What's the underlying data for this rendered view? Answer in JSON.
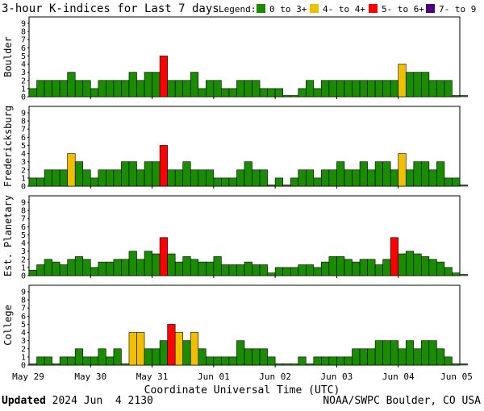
{
  "chart_data": {
    "type": "bar",
    "title": "3-hour K-indices for Last 7 days",
    "legend": {
      "label": "Legend:",
      "placement": "top-right",
      "entries": [
        {
          "label": "0 to 3+",
          "color": "#1a8c00"
        },
        {
          "label": "4- to 4+",
          "color": "#f0c000"
        },
        {
          "label": "5- to 6+",
          "color": "#ff0000"
        },
        {
          "label": "7- to 9",
          "color": "#4b0082"
        }
      ]
    },
    "ylim": [
      0,
      9
    ],
    "yticks": [
      "0",
      "1",
      "2",
      "3",
      "4",
      "5",
      "6",
      "7",
      "8",
      "9"
    ],
    "x_tick_labels": [
      "May 29",
      "May 30",
      "May 31",
      "Jun 01",
      "Jun 02",
      "Jun 03",
      "Jun 04",
      "Jun 05"
    ],
    "xlabel": "Coordinate Universal Time (UTC)",
    "bars_per_day": 8,
    "panels": [
      {
        "name": "Boulder",
        "values": [
          1,
          2,
          2,
          2,
          2,
          3,
          2,
          2,
          1,
          2,
          2,
          2,
          2,
          3,
          2,
          3,
          3,
          5,
          2,
          2,
          2,
          3,
          1,
          2,
          2,
          1,
          1,
          2,
          2,
          2,
          1,
          1,
          1,
          0,
          0,
          1,
          2,
          1,
          2,
          2,
          2,
          2,
          2,
          2,
          2,
          2,
          2,
          2,
          4,
          3,
          3,
          3,
          2,
          2,
          2,
          0,
          0
        ]
      },
      {
        "name": "Fredericksburg",
        "values": [
          1,
          1,
          2,
          2,
          2,
          4,
          3,
          2,
          1,
          2,
          2,
          2,
          3,
          3,
          2,
          3,
          3,
          5,
          2,
          2,
          3,
          2,
          2,
          2,
          1,
          1,
          1,
          2,
          3,
          2,
          2,
          0,
          1,
          0,
          1,
          2,
          2,
          1,
          2,
          2,
          3,
          2,
          2,
          3,
          2,
          3,
          3,
          2,
          4,
          2,
          3,
          3,
          2,
          3,
          1,
          1,
          0
        ]
      },
      {
        "name": "Est. Planetary",
        "values": [
          0.67,
          1.33,
          2,
          1.67,
          1.33,
          2,
          2.33,
          2,
          1,
          1.67,
          1.67,
          2,
          2,
          3,
          2,
          3,
          2.67,
          4.67,
          2.67,
          1.67,
          2.33,
          2,
          1.67,
          1.67,
          2.33,
          1.33,
          1.33,
          1.33,
          1.67,
          1.33,
          1.33,
          0.33,
          1,
          1,
          1,
          1.33,
          1.33,
          1,
          1.67,
          2.33,
          2.33,
          2,
          1.67,
          2,
          2,
          1.33,
          2,
          4.67,
          2.67,
          3,
          2.67,
          2.33,
          2,
          1.67,
          1,
          0.33,
          0
        ]
      },
      {
        "name": "College",
        "values": [
          0,
          1,
          1,
          0,
          1,
          1,
          2,
          1,
          1,
          2,
          1,
          2,
          0,
          4,
          4,
          2,
          2,
          3,
          5,
          4,
          3,
          4,
          2,
          1,
          1,
          1,
          1,
          3,
          2,
          2,
          2,
          1,
          0,
          0,
          0,
          1,
          0,
          1,
          1,
          1,
          1,
          1,
          2,
          2,
          2,
          3,
          3,
          3,
          2,
          3,
          2,
          3,
          3,
          2,
          1,
          0,
          0
        ]
      }
    ]
  },
  "footer": {
    "updated_label": "Updated",
    "updated_value": " 2024 Jun  4 2130",
    "credit": "NOAA/SWPC Boulder, CO USA"
  },
  "colors": {
    "quiet": "#1a8c00",
    "active": "#f0c000",
    "storm": "#ff0000",
    "severe": "#4b0082"
  }
}
